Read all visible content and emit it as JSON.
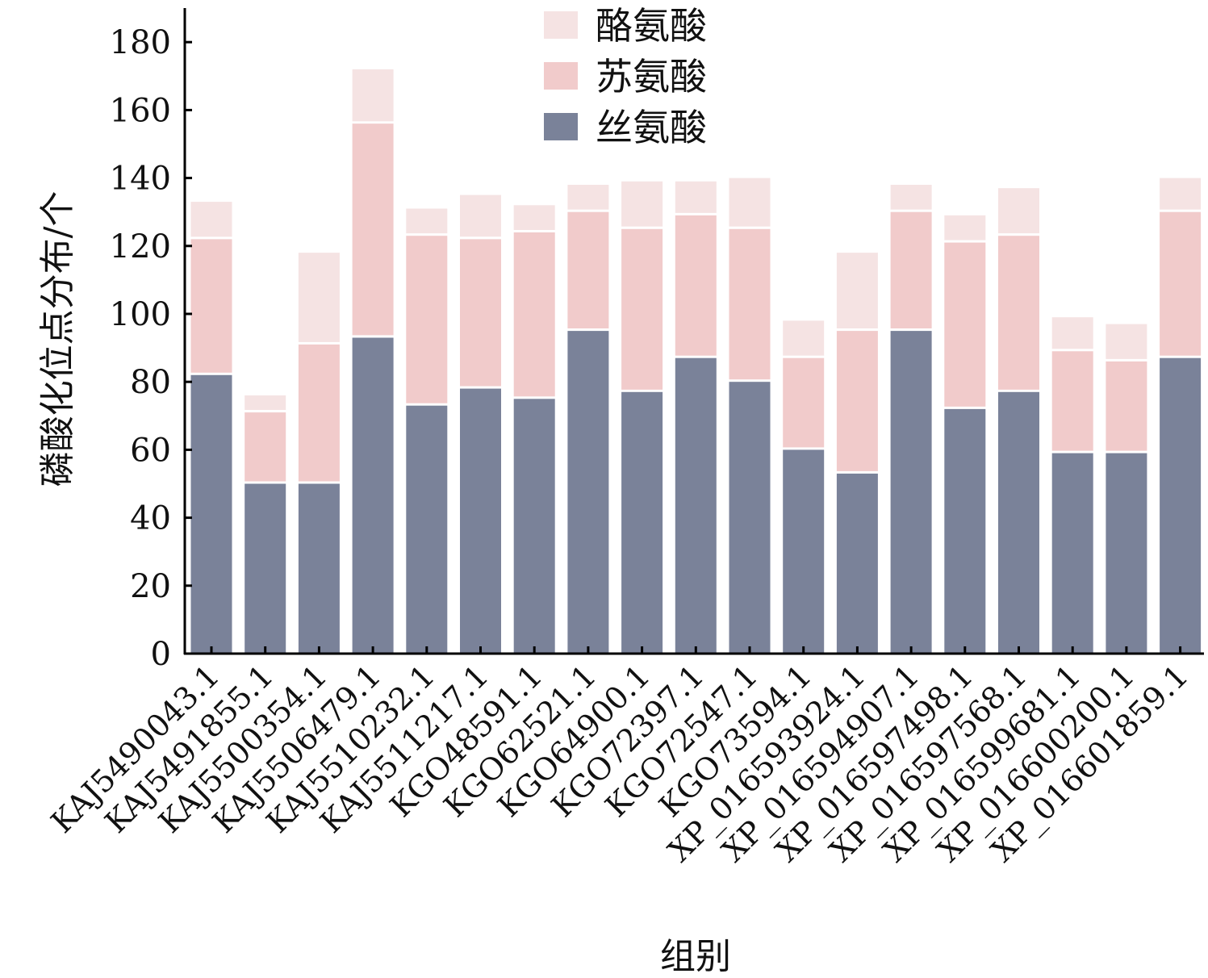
{
  "chart_data": {
    "type": "bar",
    "stacked": true,
    "xlabel": "组别",
    "ylabel": "磷酸化位点分布/个",
    "ylim": [
      0,
      190
    ],
    "yticks": [
      0,
      20,
      40,
      60,
      80,
      100,
      120,
      140,
      160,
      180
    ],
    "legend_position": "top-center",
    "categories": [
      "KAJ5490043.1",
      "KAJ5491855.1",
      "KAJ5500354.1",
      "KAJ5506479.1",
      "KAJ5510232.1",
      "KAJ5511217.1",
      "KGO48591.1",
      "KGO62521.1",
      "KGO64900.1",
      "KGO72397.1",
      "KGO72547.1",
      "KGO73594.1",
      "XP_016593924.1",
      "XP_016594907.1",
      "XP_016597498.1",
      "XP_016597568.1",
      "XP_016599681.1",
      "XP_016600200.1",
      "XP_016601859.1"
    ],
    "series": [
      {
        "name": "丝氨酸",
        "color": "#7a8299",
        "values": [
          82,
          50,
          50,
          93,
          73,
          78,
          75,
          95,
          77,
          87,
          80,
          60,
          53,
          95,
          72,
          77,
          59,
          59,
          87
        ]
      },
      {
        "name": "苏氨酸",
        "color": "#f1cbcb",
        "values": [
          40,
          21,
          41,
          63,
          50,
          44,
          49,
          35,
          48,
          42,
          45,
          27,
          42,
          35,
          49,
          46,
          30,
          27,
          43
        ]
      },
      {
        "name": "酪氨酸",
        "color": "#f5e3e3",
        "values": [
          11,
          5,
          27,
          16,
          8,
          13,
          8,
          8,
          14,
          10,
          15,
          11,
          23,
          8,
          8,
          14,
          10,
          11,
          10
        ]
      }
    ]
  }
}
